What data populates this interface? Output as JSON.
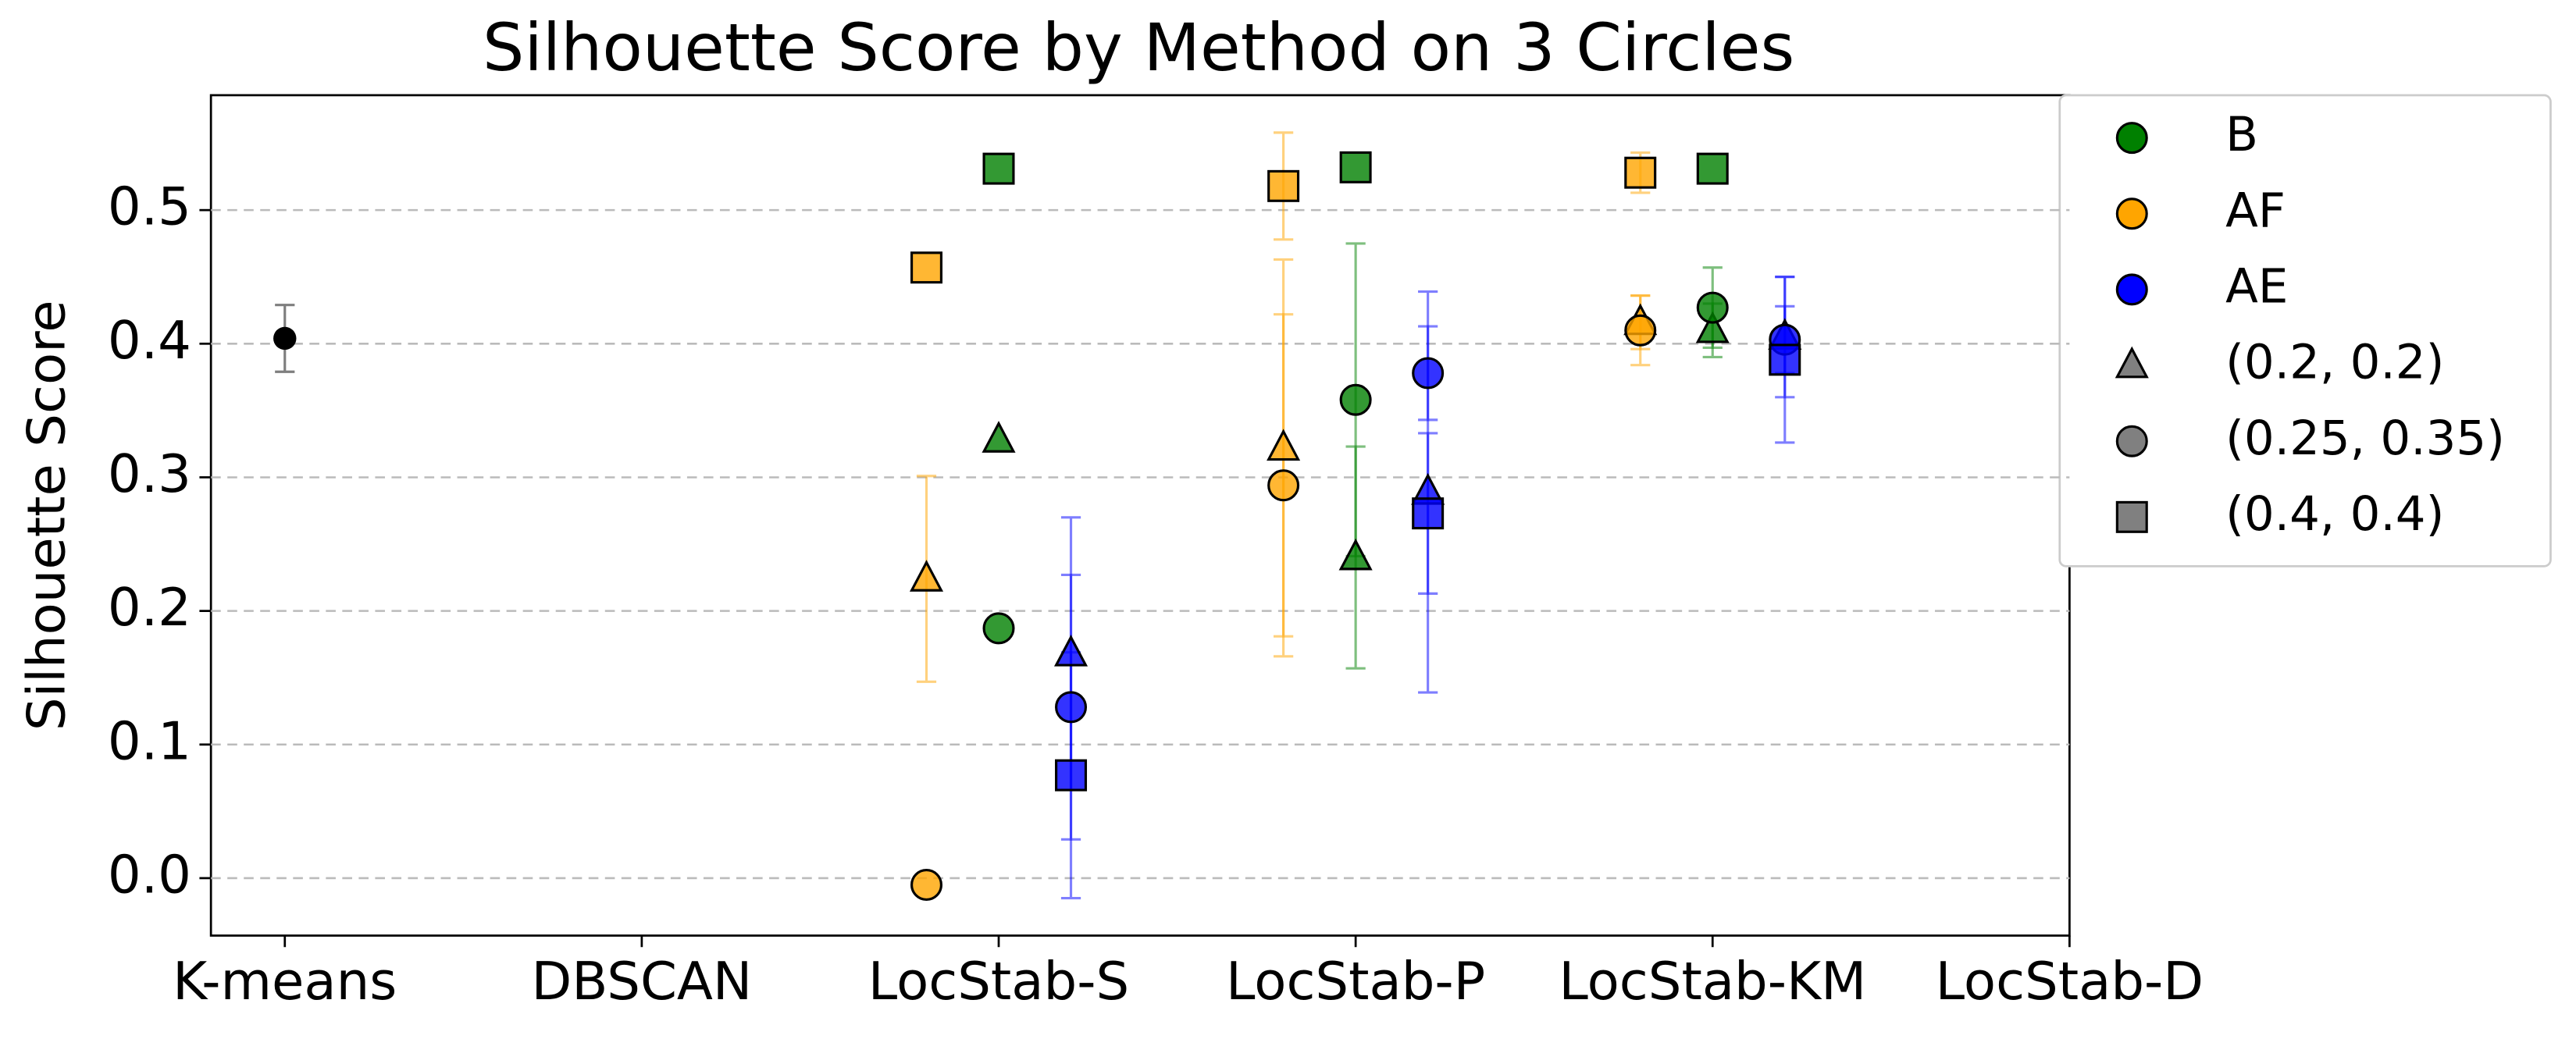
{
  "chart_data": {
    "type": "errorbar",
    "title": "Silhouette Score by Method on 3 Circles",
    "ylabel": "Silhouette Score",
    "categories": [
      "K-means",
      "DBSCAN",
      "LocStab-S",
      "LocStab-P",
      "LocStab-KM",
      "LocStab-D"
    ],
    "ylim": [
      -0.043,
      0.586
    ],
    "yticks": [
      {
        "value": 0,
        "label": "0.0"
      },
      0.1,
      0.2,
      0.3,
      0.4,
      0.5
    ],
    "grid": true,
    "legend": "outside-right",
    "reference": {
      "color": "black",
      "values": [
        0.404,
        null,
        null,
        null,
        null,
        null
      ],
      "errors": [
        0.025,
        null,
        null,
        null,
        null,
        null
      ]
    },
    "markers": [
      {
        "name": "(0.2, 0.2)",
        "marker": "triangle"
      },
      {
        "name": "(0.25, 0.35)",
        "marker": "circle"
      },
      {
        "name": "(0.4, 0.4)",
        "marker": "square"
      }
    ],
    "series": [
      {
        "name": "B",
        "color": "green",
        "values": [
          [
            null,
            null,
            0.328,
            0.24,
            0.41,
            null
          ],
          [
            null,
            null,
            0.187,
            0.358,
            0.427,
            null
          ],
          [
            null,
            null,
            0.531,
            0.532,
            0.531,
            null
          ]
        ],
        "errors": [
          [
            null,
            null,
            null,
            0.083,
            0.02,
            null
          ],
          [
            null,
            null,
            null,
            0.117,
            0.03,
            null
          ],
          [
            null,
            null,
            null,
            null,
            null,
            null
          ]
        ]
      },
      {
        "name": "AF",
        "color": "orange",
        "values": [
          [
            null,
            null,
            0.224,
            0.322,
            0.416,
            null
          ],
          [
            null,
            null,
            -0.005,
            0.294,
            0.41,
            null
          ],
          [
            null,
            null,
            0.457,
            0.518,
            0.528,
            null
          ]
        ],
        "errors": [
          [
            null,
            null,
            0.077,
            0.141,
            0.02,
            null
          ],
          [
            null,
            null,
            null,
            0.128,
            0.026,
            null
          ],
          [
            null,
            null,
            null,
            0.04,
            0.015,
            null
          ]
        ]
      },
      {
        "name": "AE",
        "color": "blue",
        "values": [
          [
            null,
            null,
            0.168,
            0.289,
            0.405,
            null
          ],
          [
            null,
            null,
            0.128,
            0.378,
            0.403,
            null
          ],
          [
            null,
            null,
            0.077,
            0.273,
            0.388,
            null
          ]
        ],
        "errors": [
          [
            null,
            null,
            0.102,
            0.15,
            0.045,
            null
          ],
          [
            null,
            null,
            0.099,
            0.035,
            0.025,
            null
          ],
          [
            null,
            null,
            0.092,
            0.06,
            0.062,
            null
          ]
        ]
      }
    ]
  }
}
